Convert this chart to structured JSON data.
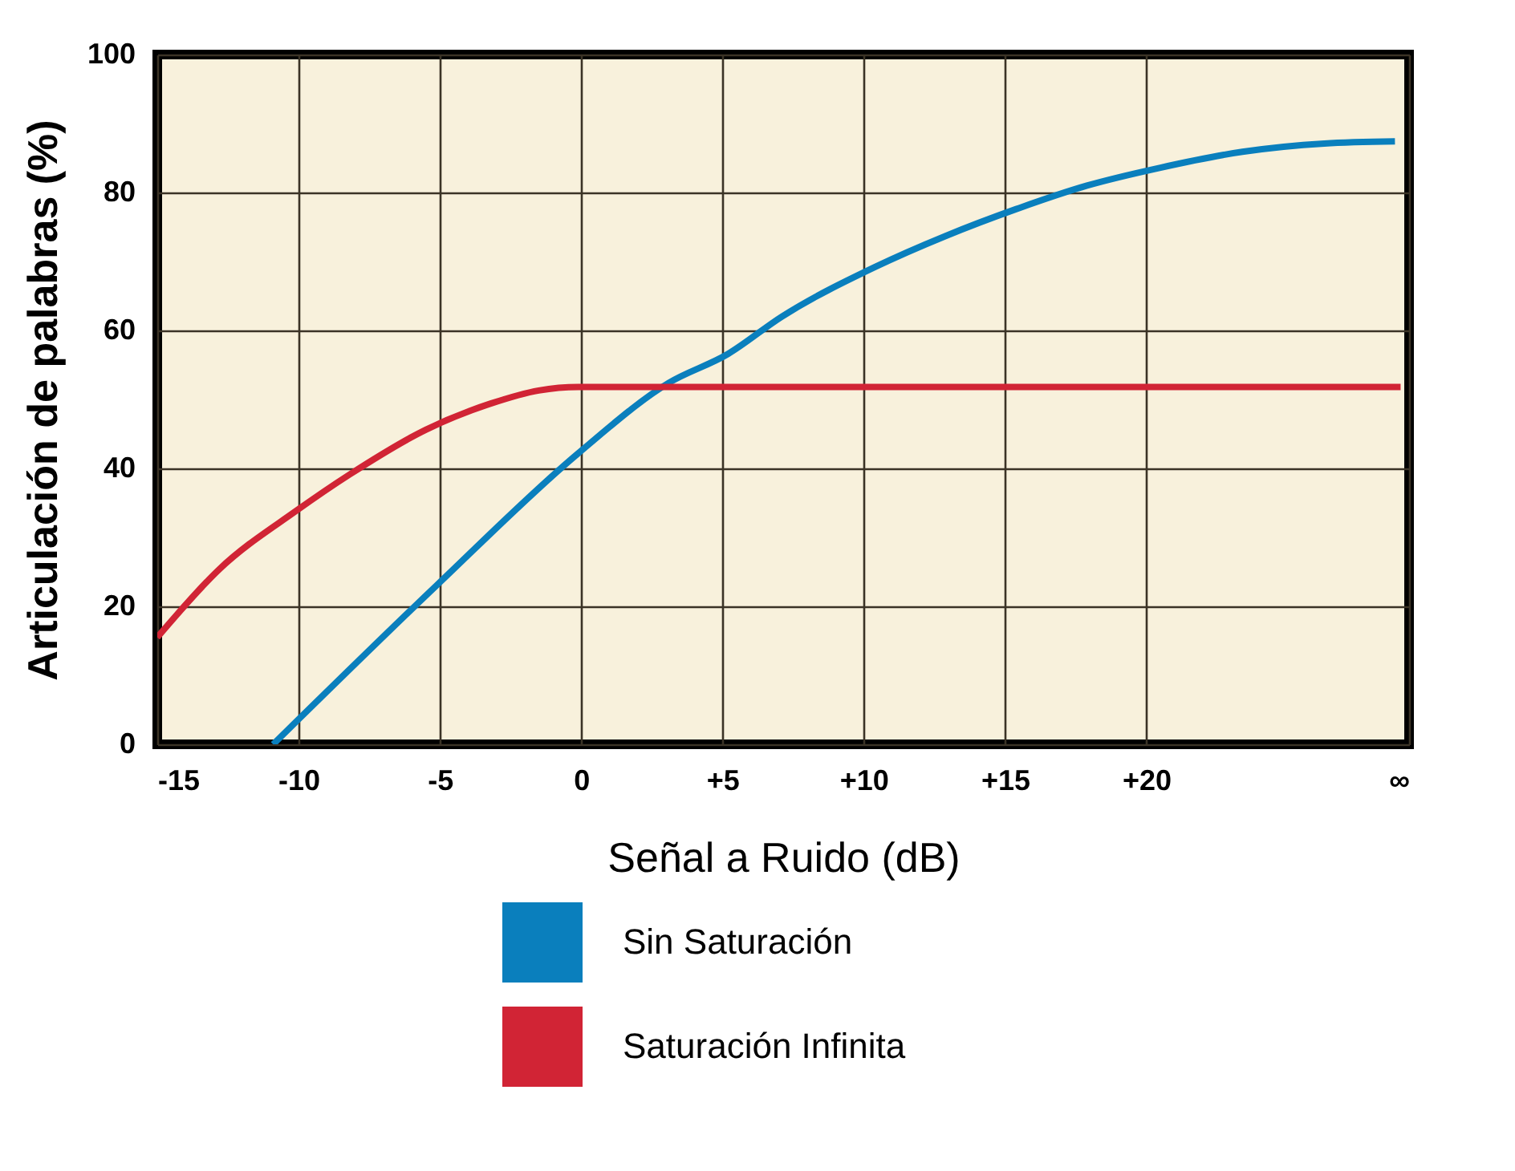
{
  "chart_data": {
    "type": "line",
    "xlabel": "Señal a Ruido (dB)",
    "ylabel": "Articulación de palabras (%)",
    "xlim": [
      -15,
      29.3
    ],
    "ylim": [
      0,
      100
    ],
    "xticks": [
      -15,
      -10,
      -5,
      0,
      {
        "value": 5,
        "label": "+5"
      },
      {
        "value": 10,
        "label": "+10"
      },
      {
        "value": 15,
        "label": "+15"
      },
      {
        "value": 20,
        "label": "+20"
      },
      {
        "value": 29.3,
        "label": "∞"
      }
    ],
    "yticks": [
      0,
      20,
      40,
      60,
      80,
      100
    ],
    "grid": true,
    "legend": "bottom",
    "marker": "none",
    "line_style": "solid",
    "series": [
      {
        "name": "Sin Saturación",
        "color": "#0a7fbd",
        "x": [
          -10.9,
          -5.1,
          -0.1,
          3.1,
          5.2,
          7.1,
          10.4,
          12.9,
          15.4,
          17.9,
          20.5,
          23.4,
          26.3,
          28.8
        ],
        "values": [
          0,
          23.1,
          42.2,
          52.4,
          56.6,
          62,
          69.2,
          73.7,
          77.6,
          81,
          83.6,
          85.9,
          87.1,
          87.4
        ]
      },
      {
        "name": "Saturación Infinita",
        "color": "#d12435",
        "x": [
          -15,
          -12.8,
          -10.1,
          -8.2,
          -5.5,
          -3.2,
          -1.5,
          -0.1,
          29
        ],
        "values": [
          15.5,
          25.4,
          33.8,
          39.1,
          45.6,
          49.4,
          51.3,
          51.8,
          51.8
        ]
      }
    ]
  }
}
